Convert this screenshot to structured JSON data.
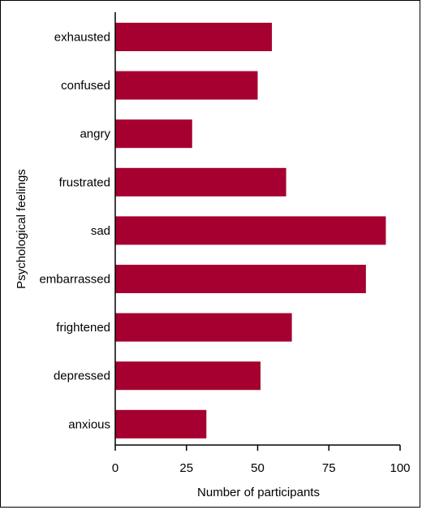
{
  "chart_data": {
    "type": "bar",
    "orientation": "horizontal",
    "categories": [
      "exhausted",
      "confused",
      "angry",
      "frustrated",
      "sad",
      "embarrassed",
      "frightened",
      "depressed",
      "anxious"
    ],
    "values": [
      55,
      50,
      27,
      60,
      95,
      88,
      62,
      51,
      32
    ],
    "xlabel": "Number of participants",
    "ylabel": "Psychological feelings",
    "xlim": [
      0,
      100
    ],
    "xticks": [
      0,
      25,
      50,
      75,
      100
    ],
    "xtick_labels": [
      "0",
      "25",
      "50",
      "75",
      "100"
    ],
    "grid": false,
    "bar_color": "#a5002f"
  }
}
